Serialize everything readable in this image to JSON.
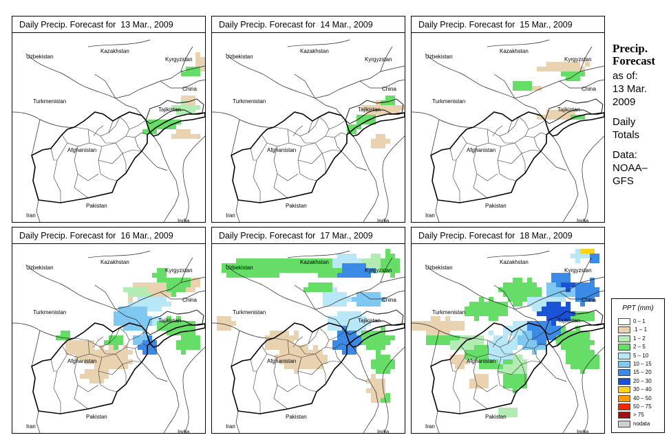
{
  "panels": [
    {
      "title": "Daily Precip. Forecast for  13 Mar., 2009",
      "day": 0
    },
    {
      "title": "Daily Precip. Forecast for  14 Mar., 2009",
      "day": 1
    },
    {
      "title": "Daily Precip. Forecast for  15 Mar., 2009",
      "day": 2
    },
    {
      "title": "Daily Precip. Forecast for  16 Mar., 2009",
      "day": 3
    },
    {
      "title": "Daily Precip. Forecast for  17 Mar., 2009",
      "day": 4
    },
    {
      "title": "Daily Precip. Forecast for  18 Mar., 2009",
      "day": 5
    }
  ],
  "country_labels": {
    "uzbekistan": "Uzbekistan",
    "kazakhstan": "Kazakhstan",
    "kyrgyzstan": "Kyrgyzstan",
    "china": "China",
    "turkmenistan": "Turkmenistan",
    "tajikistan": "Tajikistan",
    "afghanistan": "Afghanistan",
    "pakistan": "Pakistan",
    "iran": "Iran",
    "india": "India"
  },
  "side": {
    "title_line1": "Precip.",
    "title_line2": "Forecast",
    "asof_line1": "as of:",
    "asof_line2": "13 Mar.",
    "asof_line3": "2009",
    "totals_line1": "Daily",
    "totals_line2": "Totals",
    "data_line1": "Data:",
    "data_line2": "NOAA–",
    "data_line3": "GFS"
  },
  "legend": {
    "title": "PPT (mm)",
    "items": [
      {
        "label": "0 – 1",
        "color": "#ffffff"
      },
      {
        "label": ".1 – 1",
        "color": "#e8d2b0"
      },
      {
        "label": "1 – 2",
        "color": "#b2ecb2"
      },
      {
        "label": "2 – 5",
        "color": "#66dd66"
      },
      {
        "label": "5 – 10",
        "color": "#b8e8f8"
      },
      {
        "label": "10 – 15",
        "color": "#7fc8f2"
      },
      {
        "label": "15 – 20",
        "color": "#3a8ae6"
      },
      {
        "label": "20 – 30",
        "color": "#1a52d8"
      },
      {
        "label": "30 – 40",
        "color": "#ffd21a"
      },
      {
        "label": "40 – 50",
        "color": "#ff9a00"
      },
      {
        "label": "50 – 75",
        "color": "#ee2a00"
      },
      {
        "label": "> 75",
        "color": "#a01010"
      },
      {
        "label": "nodata",
        "color": "#d0d0d0"
      }
    ]
  }
}
